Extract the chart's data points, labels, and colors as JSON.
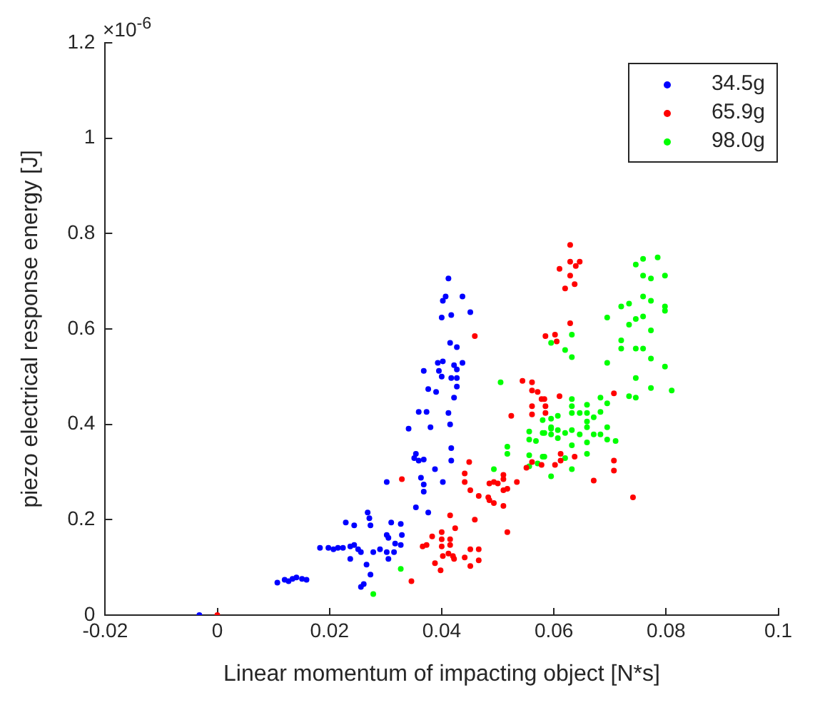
{
  "chart_data": {
    "type": "scatter",
    "xlabel": "Linear momentum of impacting object [N*s]",
    "ylabel": "piezo electrical response energy [J]",
    "annotations": [
      "×10$^{-6}$"
    ],
    "xlim": [
      -0.02,
      0.1
    ],
    "xticks": [
      -0.02,
      0,
      0.02,
      0.04,
      0.06,
      0.08,
      0.1
    ],
    "ylim": [
      0,
      1.2
    ],
    "yticks": [
      0,
      0.2,
      0.4,
      0.6,
      0.8,
      1,
      1.2
    ],
    "grid": false,
    "legend": "top right",
    "marker": "circle",
    "series": [
      {
        "name": "34.5g",
        "color": "#0000ff",
        "x": [
          -0.0032,
          0.0107,
          0.012,
          0.0127,
          0.0134,
          0.0141,
          0.0151,
          0.0159,
          0.0183,
          0.0198,
          0.0207,
          0.0215,
          0.0224,
          0.0229,
          0.0244,
          0.0237,
          0.0244,
          0.0251,
          0.0256,
          0.0237,
          0.0268,
          0.0266,
          0.0256,
          0.0261,
          0.0412,
          0.0407,
          0.0402,
          0.0437,
          0.04,
          0.0417,
          0.0451,
          0.0415,
          0.0427,
          0.0393,
          0.0402,
          0.0437,
          0.0422,
          0.0368,
          0.0395,
          0.04,
          0.0427,
          0.0427,
          0.0417,
          0.0376,
          0.039,
          0.0427,
          0.0422,
          0.0359,
          0.0373,
          0.0412,
          0.038,
          0.0341,
          0.0415,
          0.0354,
          0.0351,
          0.0359,
          0.0368,
          0.0417,
          0.0417,
          0.0388,
          0.0363,
          0.0368,
          0.0368,
          0.0402,
          0.0302,
          0.0354,
          0.0376,
          0.0271,
          0.031,
          0.0327,
          0.0302,
          0.0305,
          0.0329,
          0.0317,
          0.0273,
          0.0327,
          0.029,
          0.0302,
          0.0315,
          0.0278,
          0.0305,
          0.0273
        ],
        "values": [
          0,
          0.068,
          0.074,
          0.071,
          0.076,
          0.079,
          0.076,
          0.074,
          0.141,
          0.141,
          0.138,
          0.141,
          0.141,
          0.194,
          0.188,
          0.144,
          0.147,
          0.138,
          0.132,
          0.118,
          0.215,
          0.106,
          0.059,
          0.065,
          0.706,
          0.668,
          0.659,
          0.668,
          0.624,
          0.629,
          0.635,
          0.571,
          0.562,
          0.529,
          0.532,
          0.529,
          0.524,
          0.512,
          0.512,
          0.5,
          0.515,
          0.497,
          0.497,
          0.474,
          0.468,
          0.479,
          0.456,
          0.426,
          0.426,
          0.424,
          0.394,
          0.391,
          0.4,
          0.338,
          0.329,
          0.324,
          0.326,
          0.35,
          0.324,
          0.306,
          0.288,
          0.274,
          0.259,
          0.279,
          0.279,
          0.226,
          0.215,
          0.203,
          0.194,
          0.191,
          0.168,
          0.162,
          0.168,
          0.15,
          0.188,
          0.147,
          0.138,
          0.132,
          0.132,
          0.132,
          0.118,
          0.085
        ]
      },
      {
        "name": "65.9g",
        "color": "#ff0000",
        "x": [
          0,
          0.0459,
          0.0329,
          0.0449,
          0.0441,
          0.0441,
          0.0451,
          0.0466,
          0.0483,
          0.0485,
          0.0493,
          0.05,
          0.051,
          0.051,
          0.051,
          0.051,
          0.0517,
          0.0534,
          0.0493,
          0.0485,
          0.0415,
          0.0424,
          0.0459,
          0.04,
          0.0383,
          0.04,
          0.0415,
          0.0373,
          0.0366,
          0.04,
          0.0415,
          0.0466,
          0.0451,
          0.0412,
          0.042,
          0.0402,
          0.0388,
          0.0422,
          0.0441,
          0.0466,
          0.0398,
          0.0451,
          0.0346,
          0.0517,
          0.0524,
          0.0544,
          0.0561,
          0.0561,
          0.0571,
          0.0583,
          0.0561,
          0.0585,
          0.0561,
          0.0585,
          0.061,
          0.0585,
          0.0602,
          0.061,
          0.0551,
          0.0561,
          0.0602,
          0.0629,
          0.0629,
          0.0639,
          0.0646,
          0.0629,
          0.0637,
          0.062,
          0.0629,
          0.0605,
          0.0578,
          0.0707,
          0.0637,
          0.0612,
          0.0612,
          0.0578,
          0.0671,
          0.0707,
          0.0707,
          0.0741
        ],
        "values": [
          0,
          0.585,
          0.285,
          0.321,
          0.297,
          0.279,
          0.262,
          0.25,
          0.247,
          0.276,
          0.279,
          0.276,
          0.285,
          0.294,
          0.262,
          0.229,
          0.265,
          0.279,
          0.235,
          0.241,
          0.209,
          0.182,
          0.2,
          0.174,
          0.165,
          0.159,
          0.159,
          0.147,
          0.144,
          0.144,
          0.147,
          0.138,
          0.138,
          0.129,
          0.124,
          0.124,
          0.109,
          0.118,
          0.121,
          0.115,
          0.094,
          0.103,
          0.071,
          0.174,
          0.418,
          0.491,
          0.488,
          0.471,
          0.468,
          0.453,
          0.438,
          0.438,
          0.421,
          0.424,
          0.459,
          0.585,
          0.588,
          0.726,
          0.309,
          0.321,
          0.315,
          0.776,
          0.741,
          0.732,
          0.741,
          0.712,
          0.694,
          0.685,
          0.612,
          0.574,
          0.453,
          0.465,
          0.332,
          0.338,
          0.324,
          0.315,
          0.282,
          0.324,
          0.303,
          0.247
        ]
      },
      {
        "name": "98.0g",
        "color": "#00ff00",
        "x": [
          0.0278,
          0.0327,
          0.0493,
          0.0517,
          0.0517,
          0.0505,
          0.0556,
          0.0556,
          0.0556,
          0.0556,
          0.0568,
          0.058,
          0.058,
          0.058,
          0.0595,
          0.0595,
          0.0607,
          0.0607,
          0.0595,
          0.0632,
          0.0595,
          0.062,
          0.0632,
          0.0695,
          0.0695,
          0.072,
          0.0734,
          0.0746,
          0.0759,
          0.0785,
          0.0759,
          0.0773,
          0.0798,
          0.0759,
          0.0773,
          0.0798,
          0.0798,
          0.0734,
          0.0746,
          0.0759,
          0.0773,
          0.072,
          0.072,
          0.0746,
          0.0759,
          0.0773,
          0.0798,
          0.0746,
          0.0773,
          0.081,
          0.0734,
          0.0746,
          0.0632,
          0.0632,
          0.0659,
          0.0683,
          0.0695,
          0.0646,
          0.0632,
          0.0659,
          0.0683,
          0.0671,
          0.0659,
          0.0659,
          0.0595,
          0.0595,
          0.0583,
          0.062,
          0.0632,
          0.0646,
          0.0671,
          0.0683,
          0.0695,
          0.0695,
          0.071,
          0.0607,
          0.0632,
          0.0659,
          0.062,
          0.0583,
          0.0571,
          0.0659,
          0.0632
        ],
        "values": [
          0.044,
          0.097,
          0.306,
          0.353,
          0.338,
          0.488,
          0.385,
          0.368,
          0.335,
          0.312,
          0.365,
          0.409,
          0.382,
          0.332,
          0.412,
          0.394,
          0.418,
          0.388,
          0.291,
          0.588,
          0.571,
          0.556,
          0.541,
          0.624,
          0.529,
          0.647,
          0.653,
          0.735,
          0.747,
          0.75,
          0.712,
          0.706,
          0.712,
          0.668,
          0.659,
          0.647,
          0.638,
          0.609,
          0.621,
          0.626,
          0.597,
          0.576,
          0.559,
          0.559,
          0.559,
          0.538,
          0.521,
          0.497,
          0.476,
          0.471,
          0.459,
          0.456,
          0.453,
          0.438,
          0.441,
          0.456,
          0.444,
          0.424,
          0.424,
          0.424,
          0.426,
          0.415,
          0.406,
          0.394,
          0.391,
          0.379,
          0.382,
          0.382,
          0.388,
          0.379,
          0.379,
          0.379,
          0.394,
          0.368,
          0.365,
          0.371,
          0.356,
          0.362,
          0.329,
          0.332,
          0.318,
          0.338,
          0.306
        ]
      }
    ]
  }
}
